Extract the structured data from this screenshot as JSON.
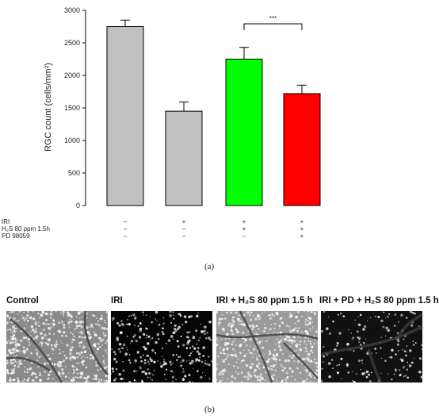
{
  "chart_data": {
    "type": "bar",
    "ylabel": "RGC count (cells/mm²)",
    "ylim": [
      0,
      3000
    ],
    "yticks": [
      0,
      500,
      1000,
      1500,
      2000,
      2500,
      3000
    ],
    "bars": [
      {
        "value": 2750,
        "error": 100,
        "color": "#c0c0c0"
      },
      {
        "value": 1450,
        "error": 140,
        "color": "#c0c0c0"
      },
      {
        "value": 2250,
        "error": 180,
        "color": "#00ff00"
      },
      {
        "value": 1720,
        "error": 130,
        "color": "#ff0000"
      }
    ],
    "significance": {
      "between": [
        2,
        3
      ],
      "label": "***"
    },
    "conditions": [
      {
        "label": "IRI",
        "signs": [
          "–",
          "+",
          "+",
          "+"
        ]
      },
      {
        "label": "H₂S 80 ppm 1.5h",
        "signs": [
          "–",
          "–",
          "+",
          "+"
        ]
      },
      {
        "label": "PD 98059",
        "signs": [
          "–",
          "–",
          "–",
          "+"
        ]
      }
    ]
  },
  "captions": {
    "a": "(a)",
    "b": "(b)"
  },
  "micrographs": [
    {
      "title": "Control",
      "style": "dense-bright"
    },
    {
      "title": "IRI",
      "style": "dark-dots"
    },
    {
      "title": "IRI + H₂S 80 ppm 1.5 h",
      "style": "bright-vessels"
    },
    {
      "title": "IRI + PD + H₂S 80 ppm 1.5 h",
      "style": "dark-vessels"
    }
  ]
}
